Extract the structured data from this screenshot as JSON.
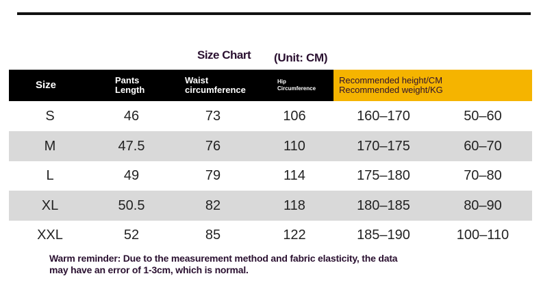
{
  "title": "Size Chart",
  "unit": "(Unit: CM)",
  "table": {
    "header": [
      [
        "Size"
      ],
      [
        "Pants",
        "Length"
      ],
      [
        "Waist",
        "circumference"
      ],
      [
        "Hip",
        "Circumference"
      ],
      [
        "Recommended height/CM",
        "Recommended weight/KG"
      ]
    ],
    "rows": [
      [
        "S",
        "46",
        "73",
        "106",
        "160–170",
        "50–60"
      ],
      [
        "M",
        "47.5",
        "76",
        "110",
        "170–175",
        "60–70"
      ],
      [
        "L",
        "49",
        "79",
        "114",
        "175–180",
        "70–80"
      ],
      [
        "XL",
        "50.5",
        "82",
        "118",
        "180–185",
        "80–90"
      ],
      [
        "XXL",
        "52",
        "85",
        "122",
        "185–190",
        "100–110"
      ]
    ]
  },
  "footer": [
    "Warm reminder: Due to the measurement method and fabric elasticity, the data",
    "may have an error of 1-3cm, which is normal."
  ]
}
